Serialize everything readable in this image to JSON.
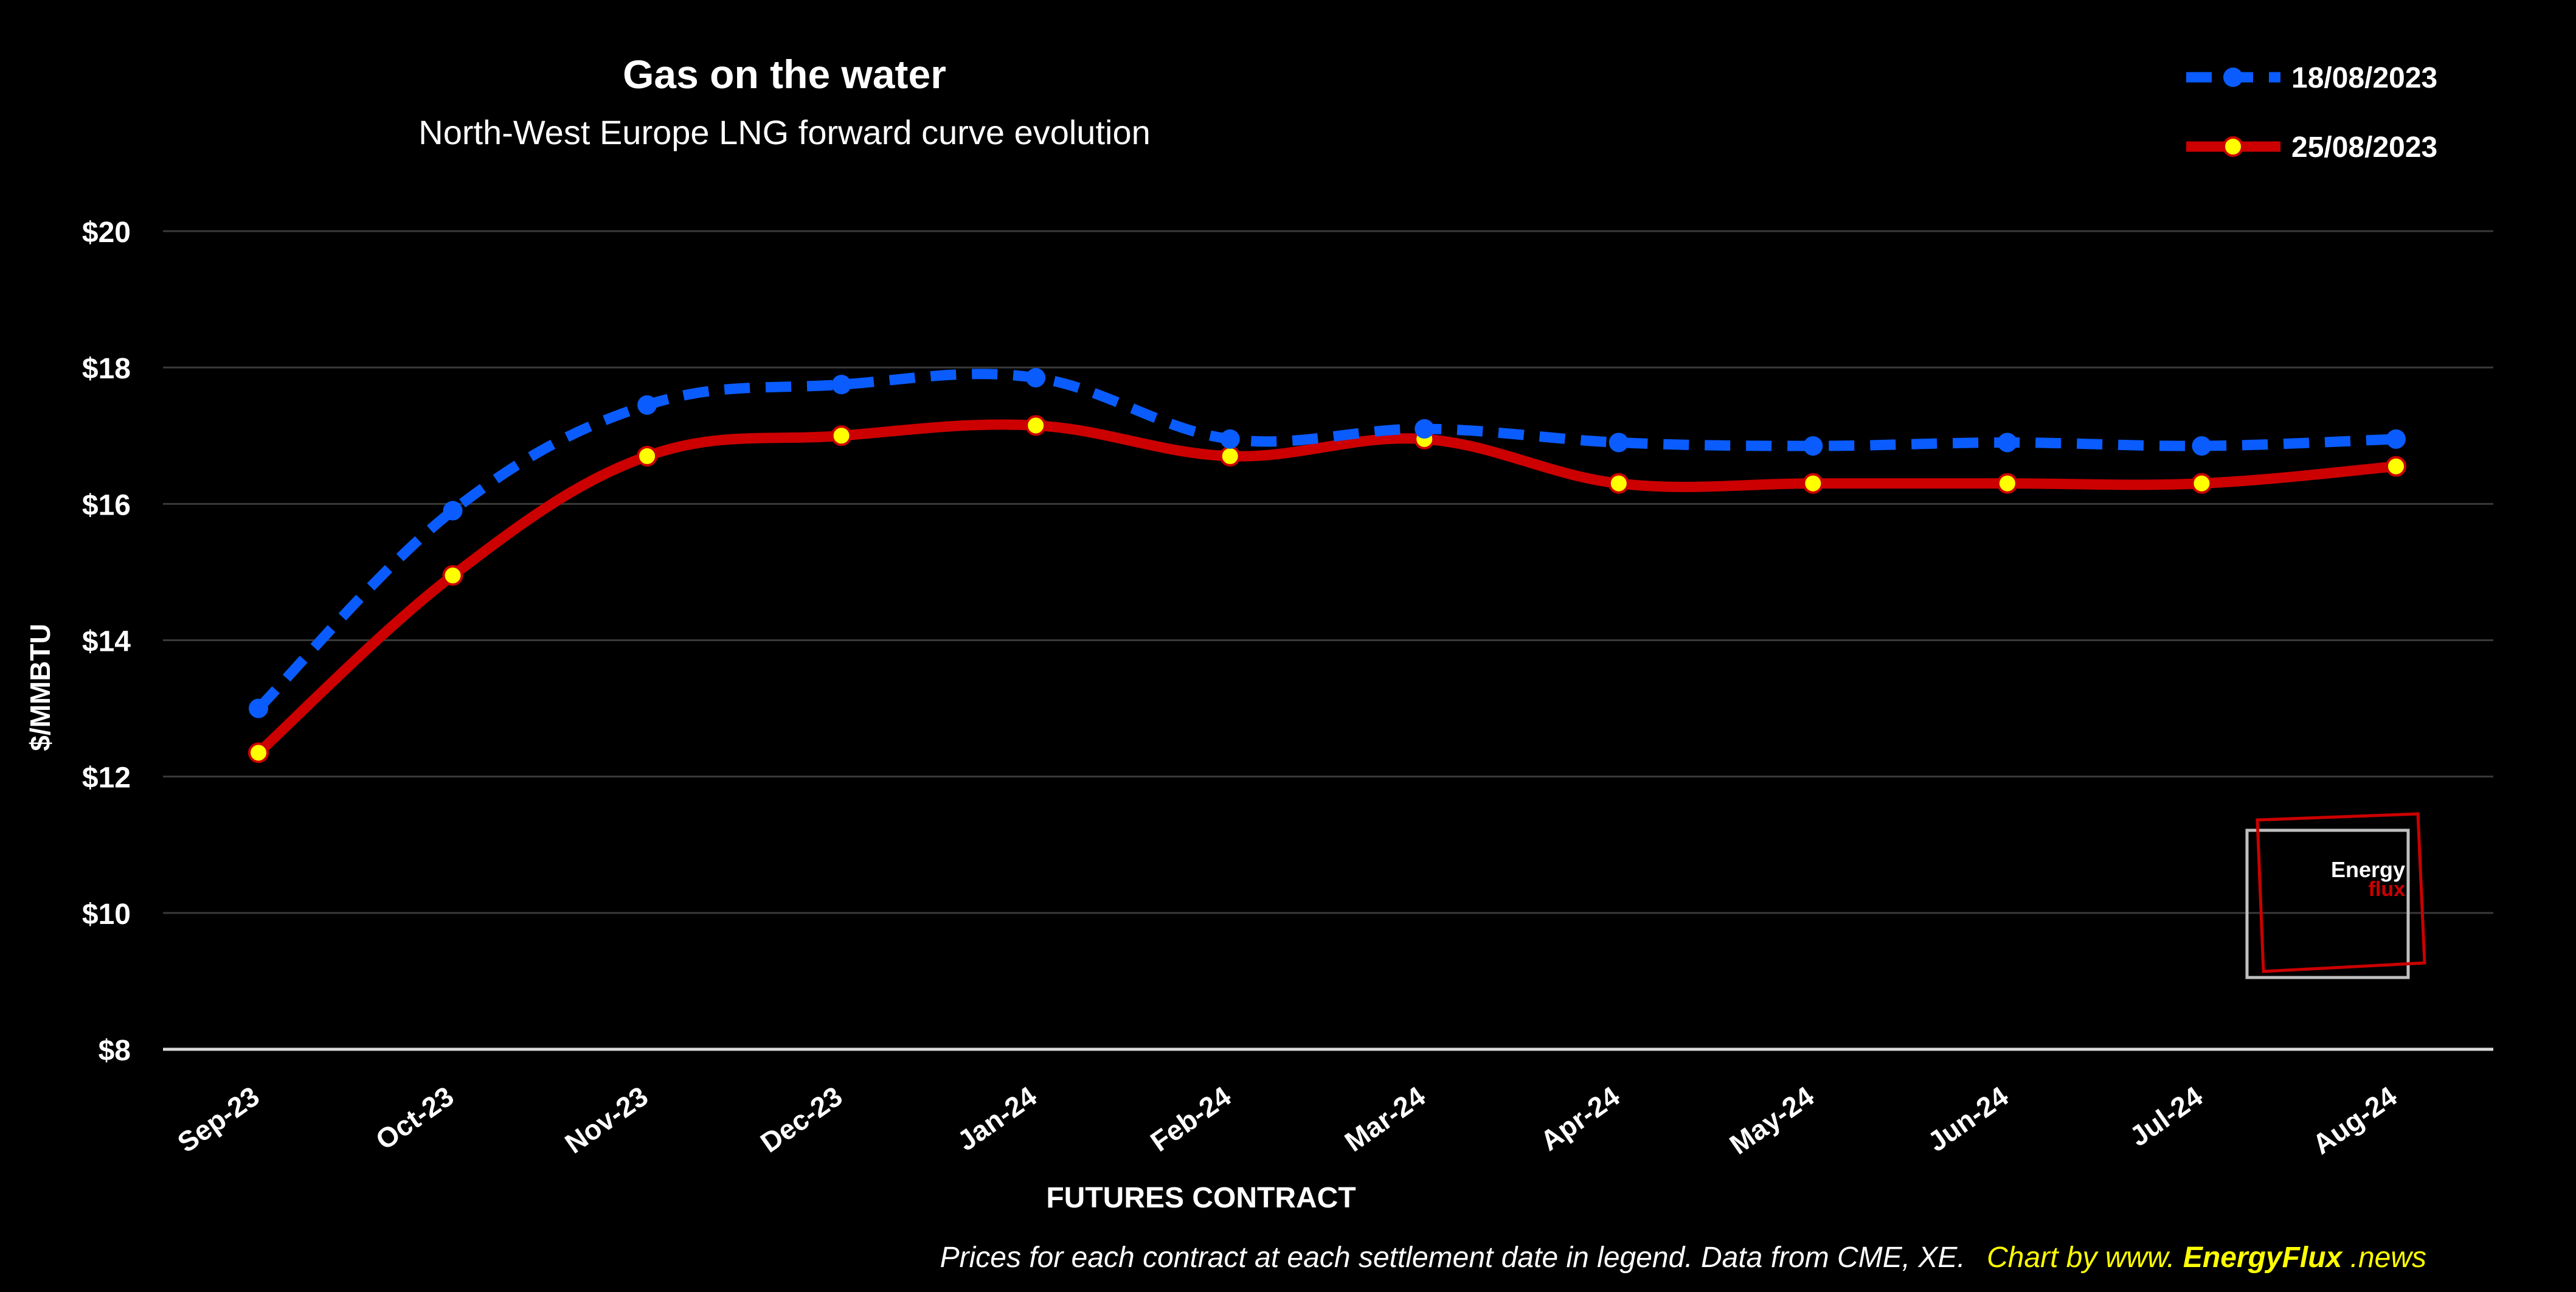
{
  "chart_data": {
    "type": "line",
    "title": "Gas on the water",
    "subtitle": "North-West Europe LNG forward curve evolution",
    "xlabel": "FUTURES CONTRACT",
    "ylabel": "$/MMBTU",
    "categories": [
      "Sep-23",
      "Oct-23",
      "Nov-23",
      "Dec-23",
      "Jan-24",
      "Feb-24",
      "Mar-24",
      "Apr-24",
      "May-24",
      "Jun-24",
      "Jul-24",
      "Aug-24"
    ],
    "ylim": [
      8,
      20
    ],
    "yticks": [
      8,
      10,
      12,
      14,
      16,
      18,
      20
    ],
    "ytick_labels": [
      "$8",
      "$10",
      "$12",
      "$14",
      "$16",
      "$18",
      "$20"
    ],
    "grid": true,
    "legend_position": "top-right",
    "series": [
      {
        "name": "18/08/2023",
        "values": [
          13.0,
          15.9,
          17.45,
          17.75,
          17.85,
          16.95,
          17.1,
          16.9,
          16.85,
          16.9,
          16.85,
          16.95
        ],
        "color": "#0a5cff",
        "style": "dashed",
        "marker_color": "#0a5cff"
      },
      {
        "name": "25/08/2023",
        "values": [
          12.35,
          14.95,
          16.7,
          17.0,
          17.15,
          16.7,
          16.95,
          16.3,
          16.3,
          16.3,
          16.3,
          16.55
        ],
        "color": "#cc0000",
        "style": "solid",
        "marker_color": "#ffff00"
      }
    ]
  },
  "footnote": {
    "text": "Prices for each contract at each settlement date in legend. Data from CME, XE.",
    "credit_prefix": "Chart by www.",
    "credit_brand": "EnergyFlux",
    "credit_suffix": ".news"
  },
  "logo": {
    "line1": "Energy",
    "line2": "flux",
    "colors": {
      "line1": "#ffffff",
      "line2": "#cc0000",
      "frame_gray": "#bfbfbf",
      "frame_red": "#cc0000"
    }
  },
  "colors": {
    "background": "#000000",
    "gridline": "#3a3a3a",
    "axis_line": "#d9d9d9",
    "text": "#ffffff",
    "accent": "#ffff00"
  }
}
